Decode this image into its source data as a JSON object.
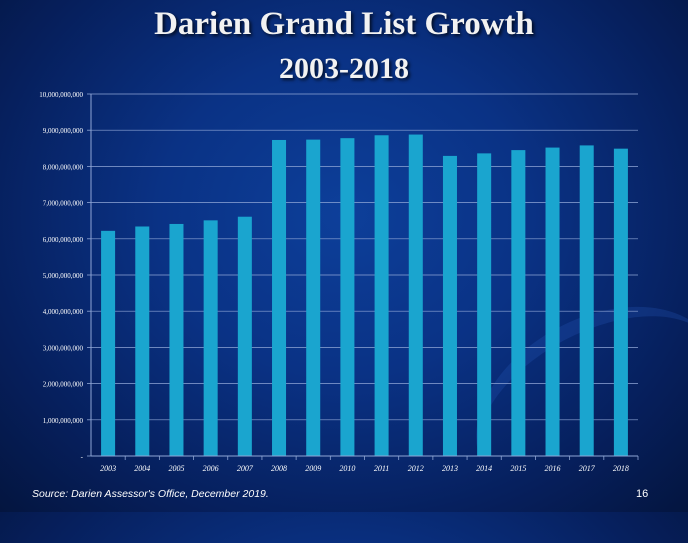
{
  "slide": {
    "title_line1": "Darien Grand List Growth",
    "title_line2": "2003-2018",
    "source": "Source: Darien Assessor's Office, December 2019.",
    "page_number": "16"
  },
  "colors": {
    "bar": "#1aa5cf",
    "axis": "#8fa6d6",
    "text": "#ffffff"
  },
  "chart_data": {
    "type": "bar",
    "title": "",
    "xlabel": "",
    "ylabel": "",
    "categories": [
      "2003",
      "2004",
      "2005",
      "2006",
      "2007",
      "2008",
      "2009",
      "2010",
      "2011",
      "2012",
      "2013",
      "2014",
      "2015",
      "2016",
      "2017",
      "2018"
    ],
    "values": [
      6220000000,
      6340000000,
      6410000000,
      6510000000,
      6610000000,
      8730000000,
      8740000000,
      8780000000,
      8860000000,
      8880000000,
      8290000000,
      8360000000,
      8450000000,
      8520000000,
      8580000000,
      8490000000
    ],
    "ylim": [
      0,
      10000000000
    ],
    "yticks": [
      0,
      1000000000,
      2000000000,
      3000000000,
      4000000000,
      5000000000,
      6000000000,
      7000000000,
      8000000000,
      9000000000,
      10000000000
    ],
    "ytick_labels": [
      "-",
      "1,000,000,000",
      "2,000,000,000",
      "3,000,000,000",
      "4,000,000,000",
      "5,000,000,000",
      "6,000,000,000",
      "7,000,000,000",
      "8,000,000,000",
      "9,000,000,000",
      "10,000,000,000"
    ],
    "grid": true,
    "legend": false
  }
}
